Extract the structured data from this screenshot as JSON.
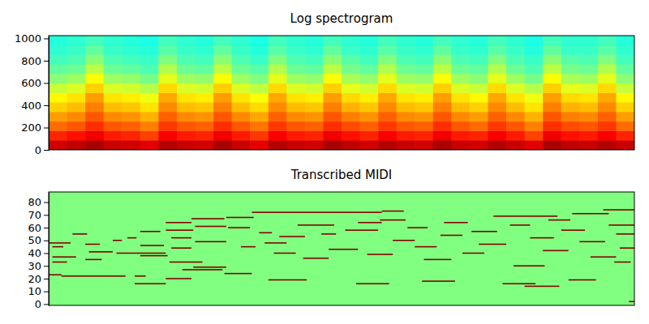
{
  "chart_data": [
    {
      "type": "heatmap",
      "title": "Log spectrogram",
      "color": "jet",
      "tick_labels": "y",
      "xlim": [
        0,
        32
      ],
      "ylim": [
        0,
        1025
      ],
      "yticks": [
        0,
        200,
        400,
        600,
        800,
        1000
      ],
      "zlim": [
        0,
        1
      ],
      "x_bins": [
        0,
        1,
        2,
        3,
        4,
        5,
        6,
        7,
        8,
        9,
        10,
        11,
        12,
        13,
        14,
        15,
        16,
        17,
        18,
        19,
        20,
        21,
        22,
        23,
        24,
        25,
        26,
        27,
        28,
        29,
        30,
        31,
        32
      ],
      "y_bins": [
        0,
        85,
        171,
        256,
        342,
        427,
        512,
        598,
        683,
        769,
        854,
        940,
        1025
      ],
      "cells": [
        [
          0.92,
          0.94,
          0.96,
          0.93,
          0.92,
          0.9,
          0.95,
          0.93,
          0.92,
          0.96,
          0.93,
          0.9,
          0.95,
          0.93,
          0.92,
          0.96,
          0.94,
          0.92,
          0.95,
          0.93,
          0.92,
          0.96,
          0.93,
          0.92,
          0.95,
          0.93,
          0.9,
          0.96,
          0.94,
          0.93,
          0.95,
          0.93
        ],
        [
          0.84,
          0.86,
          0.89,
          0.85,
          0.84,
          0.81,
          0.88,
          0.85,
          0.84,
          0.89,
          0.85,
          0.82,
          0.88,
          0.85,
          0.84,
          0.89,
          0.86,
          0.84,
          0.88,
          0.85,
          0.84,
          0.89,
          0.85,
          0.84,
          0.88,
          0.85,
          0.81,
          0.89,
          0.86,
          0.85,
          0.88,
          0.84
        ],
        [
          0.77,
          0.79,
          0.83,
          0.79,
          0.78,
          0.75,
          0.82,
          0.79,
          0.78,
          0.83,
          0.79,
          0.76,
          0.82,
          0.79,
          0.78,
          0.83,
          0.8,
          0.78,
          0.82,
          0.79,
          0.78,
          0.83,
          0.79,
          0.77,
          0.82,
          0.79,
          0.75,
          0.83,
          0.8,
          0.79,
          0.82,
          0.77
        ],
        [
          0.72,
          0.74,
          0.79,
          0.74,
          0.73,
          0.7,
          0.78,
          0.74,
          0.73,
          0.79,
          0.74,
          0.71,
          0.78,
          0.74,
          0.73,
          0.79,
          0.75,
          0.73,
          0.78,
          0.74,
          0.73,
          0.79,
          0.74,
          0.72,
          0.78,
          0.74,
          0.7,
          0.79,
          0.75,
          0.74,
          0.78,
          0.72
        ],
        [
          0.67,
          0.69,
          0.75,
          0.69,
          0.68,
          0.65,
          0.74,
          0.69,
          0.68,
          0.75,
          0.69,
          0.66,
          0.74,
          0.69,
          0.68,
          0.75,
          0.7,
          0.68,
          0.74,
          0.69,
          0.68,
          0.75,
          0.69,
          0.67,
          0.74,
          0.69,
          0.65,
          0.75,
          0.7,
          0.69,
          0.74,
          0.67
        ],
        [
          0.63,
          0.65,
          0.72,
          0.65,
          0.64,
          0.61,
          0.71,
          0.65,
          0.64,
          0.72,
          0.65,
          0.62,
          0.71,
          0.65,
          0.64,
          0.72,
          0.66,
          0.64,
          0.71,
          0.65,
          0.64,
          0.72,
          0.65,
          0.63,
          0.71,
          0.65,
          0.61,
          0.72,
          0.66,
          0.65,
          0.71,
          0.63
        ],
        [
          0.57,
          0.59,
          0.67,
          0.59,
          0.58,
          0.55,
          0.66,
          0.59,
          0.58,
          0.67,
          0.59,
          0.56,
          0.66,
          0.59,
          0.58,
          0.67,
          0.6,
          0.58,
          0.66,
          0.59,
          0.58,
          0.67,
          0.59,
          0.57,
          0.66,
          0.59,
          0.55,
          0.67,
          0.6,
          0.59,
          0.66,
          0.57
        ],
        [
          0.51,
          0.53,
          0.62,
          0.53,
          0.52,
          0.49,
          0.6,
          0.53,
          0.52,
          0.62,
          0.53,
          0.5,
          0.6,
          0.53,
          0.52,
          0.62,
          0.54,
          0.52,
          0.6,
          0.53,
          0.52,
          0.62,
          0.53,
          0.51,
          0.6,
          0.53,
          0.49,
          0.62,
          0.54,
          0.53,
          0.6,
          0.51
        ],
        [
          0.47,
          0.48,
          0.56,
          0.48,
          0.47,
          0.45,
          0.55,
          0.48,
          0.47,
          0.56,
          0.48,
          0.46,
          0.55,
          0.48,
          0.47,
          0.56,
          0.49,
          0.47,
          0.55,
          0.48,
          0.47,
          0.56,
          0.48,
          0.47,
          0.55,
          0.48,
          0.45,
          0.56,
          0.49,
          0.48,
          0.55,
          0.47
        ],
        [
          0.44,
          0.45,
          0.51,
          0.45,
          0.44,
          0.43,
          0.5,
          0.45,
          0.44,
          0.51,
          0.45,
          0.43,
          0.5,
          0.45,
          0.44,
          0.51,
          0.46,
          0.44,
          0.5,
          0.45,
          0.44,
          0.51,
          0.45,
          0.44,
          0.5,
          0.45,
          0.43,
          0.51,
          0.46,
          0.45,
          0.5,
          0.44
        ],
        [
          0.42,
          0.43,
          0.47,
          0.43,
          0.42,
          0.41,
          0.46,
          0.43,
          0.42,
          0.47,
          0.43,
          0.41,
          0.46,
          0.43,
          0.42,
          0.47,
          0.43,
          0.42,
          0.46,
          0.43,
          0.42,
          0.47,
          0.43,
          0.42,
          0.46,
          0.43,
          0.41,
          0.47,
          0.43,
          0.43,
          0.46,
          0.42
        ],
        [
          0.41,
          0.42,
          0.44,
          0.42,
          0.41,
          0.4,
          0.44,
          0.42,
          0.41,
          0.44,
          0.42,
          0.4,
          0.44,
          0.42,
          0.41,
          0.44,
          0.42,
          0.41,
          0.44,
          0.42,
          0.41,
          0.44,
          0.42,
          0.41,
          0.44,
          0.42,
          0.4,
          0.44,
          0.42,
          0.42,
          0.44,
          0.41
        ]
      ]
    },
    {
      "type": "piano_roll",
      "title": "Transcribed MIDI",
      "color": "jet",
      "tick_labels": "y",
      "xlim": [
        0,
        32
      ],
      "ylim": [
        -1,
        88
      ],
      "yticks": [
        0,
        10,
        20,
        30,
        40,
        50,
        60,
        70,
        80
      ],
      "notes": {
        "pitch": [
          23,
          22,
          22,
          16,
          20,
          27,
          24,
          19,
          16,
          18,
          16,
          14,
          19,
          33,
          37,
          45,
          48,
          55,
          47,
          41,
          35,
          50,
          52,
          40,
          46,
          38,
          57,
          64,
          58,
          52,
          44,
          33,
          67,
          61,
          49,
          29,
          68,
          60,
          45,
          72,
          56,
          48,
          40,
          53,
          36,
          62,
          55,
          43,
          58,
          64,
          39,
          73,
          66,
          50,
          60,
          45,
          35,
          54,
          64,
          40,
          57,
          47,
          69,
          62,
          30,
          52,
          42,
          66,
          58,
          71,
          49,
          37,
          74,
          62,
          55,
          44,
          33,
          2
        ],
        "start": [
          0.0,
          0.7,
          4.7,
          4.7,
          6.4,
          7.3,
          9.6,
          12.0,
          16.8,
          20.4,
          24.8,
          26.0,
          28.4,
          0.2,
          0.2,
          0.2,
          0.0,
          1.3,
          2.0,
          2.2,
          2.0,
          3.5,
          4.3,
          3.7,
          5.0,
          5.0,
          5.0,
          6.4,
          6.4,
          6.7,
          6.7,
          6.6,
          7.8,
          8.0,
          8.0,
          7.9,
          9.7,
          9.8,
          10.5,
          11.1,
          11.5,
          11.8,
          12.3,
          12.6,
          13.9,
          13.6,
          14.9,
          15.3,
          16.2,
          16.9,
          17.4,
          18.2,
          18.1,
          18.8,
          19.6,
          20.0,
          20.5,
          21.4,
          21.6,
          22.6,
          23.1,
          23.5,
          24.3,
          25.2,
          25.4,
          26.3,
          27.0,
          27.3,
          28.0,
          28.6,
          29.0,
          29.6,
          30.3,
          30.6,
          31.0,
          31.2,
          30.9,
          31.7
        ],
        "end": [
          0.7,
          4.2,
          5.3,
          6.4,
          7.8,
          9.5,
          11.1,
          14.1,
          18.6,
          22.2,
          26.6,
          27.9,
          29.9,
          1.0,
          1.5,
          0.8,
          1.2,
          2.1,
          2.8,
          3.5,
          2.9,
          4.0,
          4.8,
          6.4,
          6.3,
          6.5,
          6.1,
          7.8,
          7.9,
          7.8,
          7.8,
          8.4,
          9.6,
          9.7,
          9.7,
          9.7,
          11.2,
          11.0,
          11.3,
          18.2,
          12.2,
          13.0,
          13.5,
          14.0,
          15.3,
          15.6,
          15.7,
          16.9,
          18.0,
          18.2,
          18.8,
          19.4,
          19.5,
          20.0,
          20.7,
          21.2,
          22.0,
          22.6,
          22.9,
          23.8,
          24.5,
          25.0,
          27.8,
          26.3,
          27.1,
          27.6,
          28.4,
          28.5,
          29.3,
          30.6,
          30.4,
          31.0,
          32.0,
          32.0,
          32.0,
          32.0,
          31.8,
          32.0
        ]
      }
    }
  ]
}
